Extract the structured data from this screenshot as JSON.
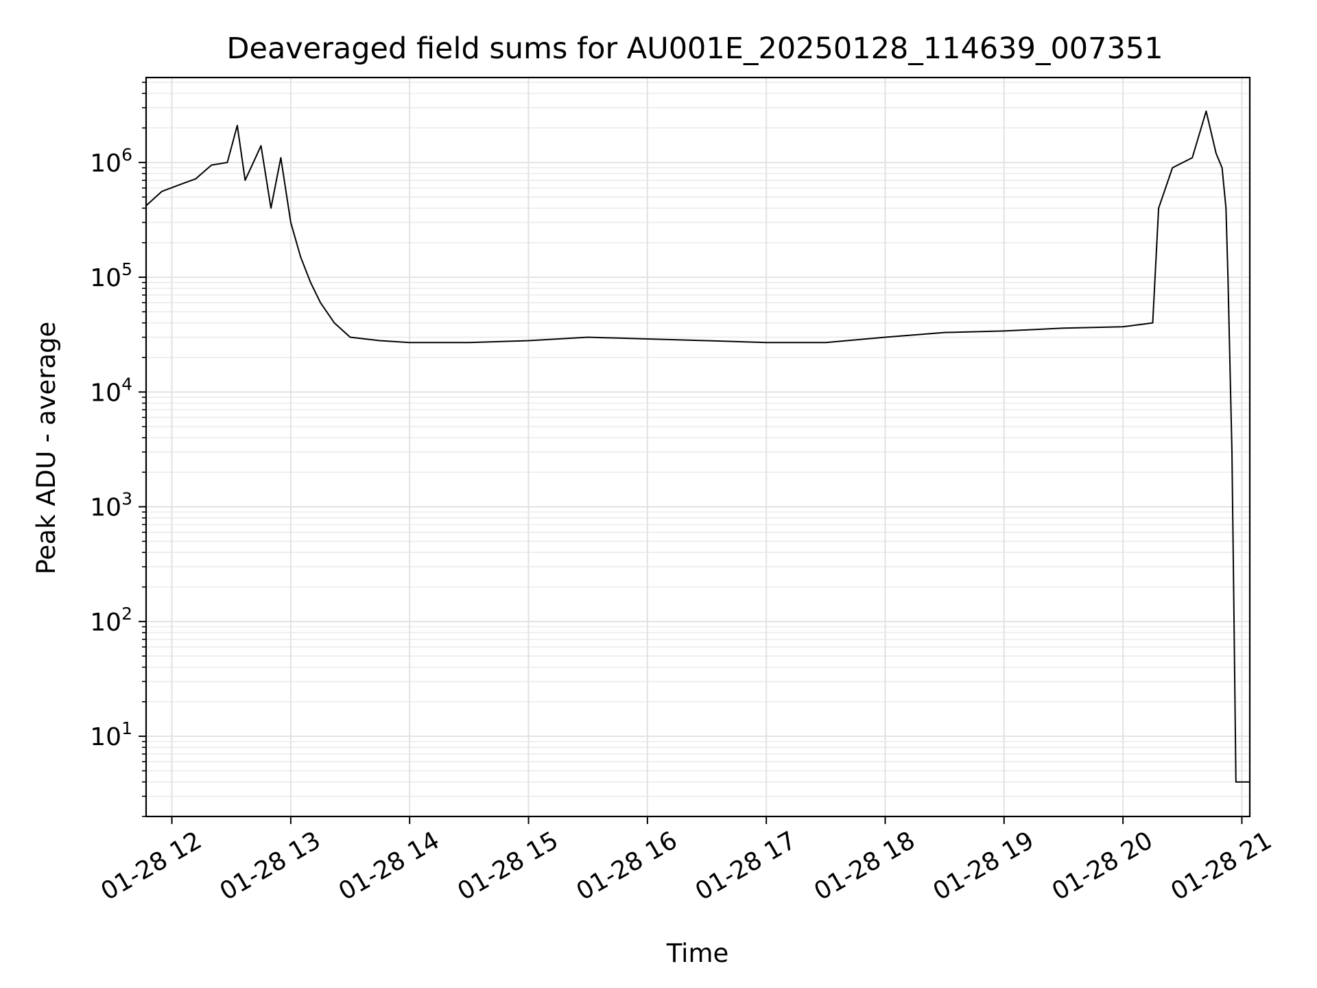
{
  "chart_data": {
    "type": "line",
    "title": "Deaveraged field sums for AU001E_20250128_114639_007351",
    "xlabel": "Time",
    "ylabel": "Peak ADU - average",
    "x_axis": {
      "type": "time",
      "min": "2025-01-28T11:47",
      "max": "2025-01-28T21:04",
      "ticks": [
        {
          "value": "2025-01-28T12:00",
          "label": "01-28 12"
        },
        {
          "value": "2025-01-28T13:00",
          "label": "01-28 13"
        },
        {
          "value": "2025-01-28T14:00",
          "label": "01-28 14"
        },
        {
          "value": "2025-01-28T15:00",
          "label": "01-28 15"
        },
        {
          "value": "2025-01-28T16:00",
          "label": "01-28 16"
        },
        {
          "value": "2025-01-28T17:00",
          "label": "01-28 17"
        },
        {
          "value": "2025-01-28T18:00",
          "label": "01-28 18"
        },
        {
          "value": "2025-01-28T19:00",
          "label": "01-28 19"
        },
        {
          "value": "2025-01-28T20:00",
          "label": "01-28 20"
        },
        {
          "value": "2025-01-28T21:00",
          "label": "01-28 21"
        }
      ]
    },
    "y_axis": {
      "scale": "log",
      "min": 2,
      "max": 5500000,
      "ticks": [
        {
          "value": 10,
          "base": "10",
          "exp": "1"
        },
        {
          "value": 100,
          "base": "10",
          "exp": "2"
        },
        {
          "value": 1000,
          "base": "10",
          "exp": "3"
        },
        {
          "value": 10000,
          "base": "10",
          "exp": "4"
        },
        {
          "value": 100000,
          "base": "10",
          "exp": "5"
        },
        {
          "value": 1000000,
          "base": "10",
          "exp": "6"
        }
      ]
    },
    "grid": true,
    "series": [
      {
        "color": "#000000",
        "points": [
          [
            "2025-01-28T11:47",
            420000
          ],
          [
            "2025-01-28T11:55",
            560000
          ],
          [
            "2025-01-28T12:05",
            650000
          ],
          [
            "2025-01-28T12:12",
            720000
          ],
          [
            "2025-01-28T12:20",
            950000
          ],
          [
            "2025-01-28T12:28",
            1000000
          ],
          [
            "2025-01-28T12:33",
            2100000
          ],
          [
            "2025-01-28T12:37",
            700000
          ],
          [
            "2025-01-28T12:45",
            1400000
          ],
          [
            "2025-01-28T12:50",
            400000
          ],
          [
            "2025-01-28T12:55",
            1100000
          ],
          [
            "2025-01-28T13:00",
            300000
          ],
          [
            "2025-01-28T13:05",
            150000
          ],
          [
            "2025-01-28T13:10",
            90000
          ],
          [
            "2025-01-28T13:15",
            60000
          ],
          [
            "2025-01-28T13:22",
            40000
          ],
          [
            "2025-01-28T13:30",
            30000
          ],
          [
            "2025-01-28T13:45",
            28000
          ],
          [
            "2025-01-28T14:00",
            27000
          ],
          [
            "2025-01-28T14:30",
            27000
          ],
          [
            "2025-01-28T15:00",
            28000
          ],
          [
            "2025-01-28T15:30",
            30000
          ],
          [
            "2025-01-28T16:00",
            29000
          ],
          [
            "2025-01-28T16:30",
            28000
          ],
          [
            "2025-01-28T17:00",
            27000
          ],
          [
            "2025-01-28T17:30",
            27000
          ],
          [
            "2025-01-28T18:00",
            30000
          ],
          [
            "2025-01-28T18:30",
            33000
          ],
          [
            "2025-01-28T19:00",
            34000
          ],
          [
            "2025-01-28T19:30",
            36000
          ],
          [
            "2025-01-28T20:00",
            37000
          ],
          [
            "2025-01-28T20:15",
            40000
          ],
          [
            "2025-01-28T20:18",
            400000
          ],
          [
            "2025-01-28T20:25",
            900000
          ],
          [
            "2025-01-28T20:35",
            1100000
          ],
          [
            "2025-01-28T20:42",
            2800000
          ],
          [
            "2025-01-28T20:47",
            1200000
          ],
          [
            "2025-01-28T20:50",
            900000
          ],
          [
            "2025-01-28T20:52",
            400000
          ],
          [
            "2025-01-28T20:53",
            100000
          ],
          [
            "2025-01-28T20:55",
            3000
          ],
          [
            "2025-01-28T20:56",
            120
          ],
          [
            "2025-01-28T20:57",
            4
          ],
          [
            "2025-01-28T21:04",
            4
          ]
        ]
      }
    ]
  }
}
